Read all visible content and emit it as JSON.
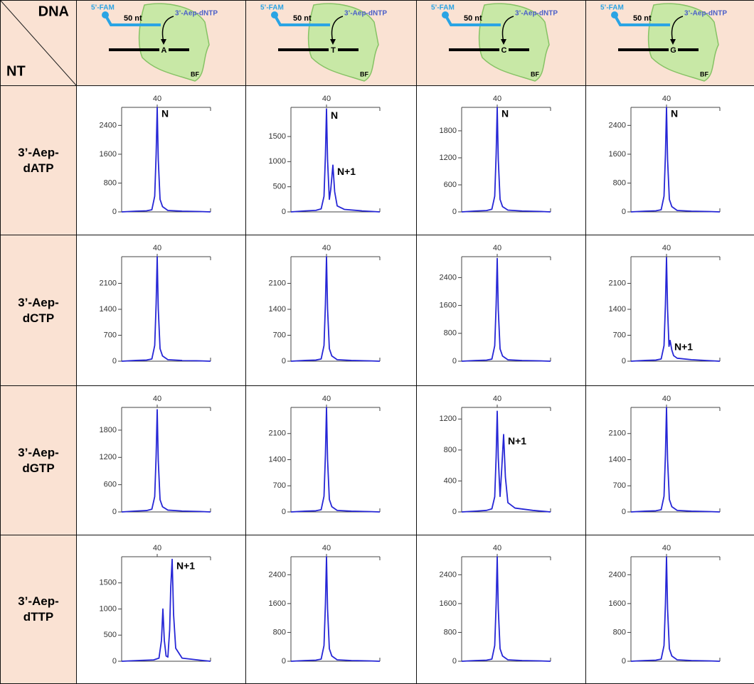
{
  "table": {
    "corner": {
      "top": "DNA",
      "bottom": "NT"
    },
    "columns": [
      {
        "primer": "5’-FAM",
        "length": "50 nt",
        "nucleotide": "3’-Aep-dNTP",
        "base": "A",
        "enzyme": "BF"
      },
      {
        "primer": "5’-FAM",
        "length": "50 nt",
        "nucleotide": "3’-Aep-dNTP",
        "base": "T",
        "enzyme": "BF"
      },
      {
        "primer": "5’-FAM",
        "length": "50 nt",
        "nucleotide": "3’-Aep-dNTP",
        "base": "C",
        "enzyme": "BF"
      },
      {
        "primer": "5’-FAM",
        "length": "50 nt",
        "nucleotide": "3’-Aep-dNTP",
        "base": "G",
        "enzyme": "BF"
      }
    ],
    "rows": [
      "3’-Aep-dATP",
      "3’-Aep-dCTP",
      "3’-Aep-dGTP",
      "3’-Aep-dTTP"
    ]
  },
  "chart_data": [
    {
      "type": "line",
      "color": "#2626d6",
      "xlim": [
        30,
        55
      ],
      "xticks": [
        40
      ],
      "ylim": [
        0,
        2900
      ],
      "yticks": [
        0,
        800,
        1600,
        2400
      ],
      "x": [
        30,
        34,
        37,
        38.5,
        39.3,
        39.7,
        40,
        40.3,
        40.8,
        41.5,
        43,
        47,
        52,
        55
      ],
      "values": [
        0,
        20,
        30,
        60,
        435,
        1595,
        2900,
        1450,
        348,
        145,
        40,
        20,
        10,
        0
      ],
      "annotations": [
        {
          "text": "N",
          "x": 40,
          "y": 2900
        }
      ]
    },
    {
      "type": "line",
      "color": "#2626d6",
      "xlim": [
        30,
        55
      ],
      "xticks": [
        40
      ],
      "ylim": [
        0,
        2080
      ],
      "yticks": [
        0,
        500,
        1000,
        1500
      ],
      "x": [
        30,
        34,
        37,
        38.5,
        39.3,
        39.7,
        40,
        40.3,
        40.8,
        41.2,
        41.8,
        42.3,
        43,
        45,
        50,
        55
      ],
      "values": [
        0,
        20,
        30,
        60,
        310,
        1130,
        2050,
        1030,
        250,
        450,
        930,
        400,
        120,
        50,
        20,
        0
      ],
      "annotations": [
        {
          "text": "N",
          "x": 40,
          "y": 2050
        },
        {
          "text": "N+1",
          "x": 41.8,
          "y": 930
        }
      ]
    },
    {
      "type": "line",
      "color": "#2626d6",
      "xlim": [
        30,
        55
      ],
      "xticks": [
        40
      ],
      "ylim": [
        0,
        2320
      ],
      "yticks": [
        0,
        600,
        1200,
        1800
      ],
      "x": [
        30,
        34,
        37,
        38.5,
        39.3,
        39.7,
        40,
        40.3,
        40.8,
        41.5,
        43,
        47,
        52,
        55
      ],
      "values": [
        0,
        20,
        30,
        60,
        348,
        1276,
        2320,
        1160,
        278,
        116,
        40,
        20,
        10,
        0
      ],
      "annotations": [
        {
          "text": "N",
          "x": 40,
          "y": 2320
        }
      ]
    },
    {
      "type": "line",
      "color": "#2626d6",
      "xlim": [
        30,
        55
      ],
      "xticks": [
        40
      ],
      "ylim": [
        0,
        2900
      ],
      "yticks": [
        0,
        800,
        1600,
        2400
      ],
      "x": [
        30,
        34,
        37,
        38.5,
        39.3,
        39.7,
        40,
        40.3,
        40.8,
        41.5,
        43,
        47,
        52,
        55
      ],
      "values": [
        0,
        20,
        30,
        60,
        435,
        1595,
        2900,
        1450,
        348,
        145,
        40,
        20,
        10,
        0
      ],
      "annotations": [
        {
          "text": "N",
          "x": 40,
          "y": 2900
        }
      ]
    },
    {
      "type": "line",
      "color": "#2626d6",
      "xlim": [
        30,
        55
      ],
      "xticks": [
        40
      ],
      "ylim": [
        0,
        2820
      ],
      "yticks": [
        0,
        700,
        1400,
        2100
      ],
      "x": [
        30,
        34,
        37,
        38.5,
        39.3,
        39.7,
        40,
        40.3,
        40.8,
        41.5,
        43,
        47,
        52,
        55
      ],
      "values": [
        0,
        20,
        30,
        60,
        423,
        1551,
        2820,
        1410,
        338,
        141,
        40,
        20,
        10,
        0
      ],
      "annotations": []
    },
    {
      "type": "line",
      "color": "#2626d6",
      "xlim": [
        30,
        55
      ],
      "xticks": [
        40
      ],
      "ylim": [
        0,
        2820
      ],
      "yticks": [
        0,
        700,
        1400,
        2100
      ],
      "x": [
        30,
        34,
        37,
        38.5,
        39.3,
        39.7,
        40,
        40.3,
        40.8,
        41.5,
        43,
        47,
        52,
        55
      ],
      "values": [
        0,
        20,
        30,
        60,
        423,
        1551,
        2820,
        1410,
        338,
        141,
        40,
        20,
        10,
        0
      ],
      "annotations": []
    },
    {
      "type": "line",
      "color": "#2626d6",
      "xlim": [
        30,
        55
      ],
      "xticks": [
        40
      ],
      "ylim": [
        0,
        3000
      ],
      "yticks": [
        0,
        800,
        1600,
        2400
      ],
      "x": [
        30,
        34,
        37,
        38.5,
        39.3,
        39.7,
        40,
        40.3,
        40.8,
        41.5,
        43,
        47,
        52,
        55
      ],
      "values": [
        0,
        20,
        30,
        60,
        443,
        1623,
        2950,
        1475,
        354,
        148,
        40,
        20,
        10,
        0
      ],
      "annotations": []
    },
    {
      "type": "line",
      "color": "#2626d6",
      "xlim": [
        30,
        55
      ],
      "xticks": [
        40
      ],
      "ylim": [
        0,
        2820
      ],
      "yticks": [
        0,
        700,
        1400,
        2100
      ],
      "x": [
        30,
        34,
        37,
        38.5,
        39.3,
        39.7,
        40,
        40.3,
        40.7,
        41,
        41.5,
        42,
        43,
        47,
        52,
        55
      ],
      "values": [
        0,
        20,
        30,
        60,
        420,
        1540,
        2800,
        1400,
        400,
        560,
        300,
        150,
        80,
        40,
        15,
        0
      ],
      "annotations": [
        {
          "text": "N+1",
          "x": 41,
          "y": 560
        }
      ]
    },
    {
      "type": "line",
      "color": "#2626d6",
      "xlim": [
        30,
        55
      ],
      "xticks": [
        40
      ],
      "ylim": [
        0,
        2300
      ],
      "yticks": [
        0,
        600,
        1200,
        1800
      ],
      "x": [
        30,
        34,
        37,
        38.5,
        39.3,
        39.7,
        40,
        40.3,
        40.8,
        41.5,
        43,
        47,
        52,
        55
      ],
      "values": [
        0,
        20,
        30,
        60,
        338,
        1238,
        2250,
        1125,
        270,
        113,
        40,
        20,
        10,
        0
      ],
      "annotations": []
    },
    {
      "type": "line",
      "color": "#2626d6",
      "xlim": [
        30,
        55
      ],
      "xticks": [
        40
      ],
      "ylim": [
        0,
        2800
      ],
      "yticks": [
        0,
        700,
        1400,
        2100
      ],
      "x": [
        30,
        34,
        37,
        38.5,
        39.3,
        39.7,
        40,
        40.3,
        40.8,
        41.5,
        43,
        47,
        52,
        55
      ],
      "values": [
        0,
        20,
        30,
        60,
        420,
        1540,
        2800,
        1400,
        336,
        140,
        40,
        20,
        10,
        0
      ],
      "annotations": []
    },
    {
      "type": "line",
      "color": "#2626d6",
      "xlim": [
        30,
        55
      ],
      "xticks": [
        40
      ],
      "ylim": [
        0,
        1350
      ],
      "yticks": [
        0,
        400,
        800,
        1200
      ],
      "x": [
        30,
        34,
        37,
        38.5,
        39.3,
        39.7,
        40,
        40.3,
        40.8,
        41.2,
        41.8,
        42.3,
        43,
        45,
        50,
        55
      ],
      "values": [
        0,
        10,
        20,
        40,
        195,
        715,
        1300,
        700,
        200,
        500,
        1000,
        450,
        120,
        50,
        20,
        0
      ],
      "annotations": [
        {
          "text": "N+1",
          "x": 41.8,
          "y": 1000
        }
      ]
    },
    {
      "type": "line",
      "color": "#2626d6",
      "xlim": [
        30,
        55
      ],
      "xticks": [
        40
      ],
      "ylim": [
        0,
        2800
      ],
      "yticks": [
        0,
        700,
        1400,
        2100
      ],
      "x": [
        30,
        34,
        37,
        38.5,
        39.3,
        39.7,
        40,
        40.3,
        40.8,
        41.5,
        43,
        47,
        52,
        55
      ],
      "values": [
        0,
        20,
        30,
        60,
        420,
        1540,
        2800,
        1400,
        336,
        140,
        40,
        20,
        10,
        0
      ],
      "annotations": []
    },
    {
      "type": "line",
      "color": "#2626d6",
      "xlim": [
        30,
        55
      ],
      "xticks": [
        40
      ],
      "ylim": [
        0,
        2000
      ],
      "yticks": [
        0,
        500,
        1000,
        1500
      ],
      "x": [
        30,
        35,
        39,
        40.5,
        41.2,
        41.6,
        42,
        42.5,
        43,
        43.5,
        43.8,
        44.2,
        44.6,
        45.2,
        47,
        52,
        55
      ],
      "values": [
        0,
        15,
        25,
        60,
        400,
        1000,
        400,
        100,
        80,
        600,
        1400,
        1950,
        900,
        250,
        60,
        20,
        0
      ],
      "annotations": [
        {
          "text": "N+1",
          "x": 44.2,
          "y": 1950
        }
      ]
    },
    {
      "type": "line",
      "color": "#2626d6",
      "xlim": [
        30,
        55
      ],
      "xticks": [
        40
      ],
      "ylim": [
        0,
        2900
      ],
      "yticks": [
        0,
        800,
        1600,
        2400
      ],
      "x": [
        30,
        34,
        37,
        38.5,
        39.3,
        39.7,
        40,
        40.3,
        40.8,
        41.5,
        43,
        47,
        52,
        55
      ],
      "values": [
        0,
        20,
        30,
        60,
        435,
        1595,
        2900,
        1450,
        348,
        145,
        40,
        20,
        10,
        0
      ],
      "annotations": []
    },
    {
      "type": "line",
      "color": "#2626d6",
      "xlim": [
        30,
        55
      ],
      "xticks": [
        40
      ],
      "ylim": [
        0,
        2900
      ],
      "yticks": [
        0,
        800,
        1600,
        2400
      ],
      "x": [
        30,
        34,
        37,
        38.5,
        39.3,
        39.7,
        40,
        40.3,
        40.8,
        41.5,
        43,
        47,
        52,
        55
      ],
      "values": [
        0,
        20,
        30,
        60,
        435,
        1595,
        2900,
        1450,
        348,
        145,
        40,
        20,
        10,
        0
      ],
      "annotations": []
    },
    {
      "type": "line",
      "color": "#2626d6",
      "xlim": [
        30,
        55
      ],
      "xticks": [
        40
      ],
      "ylim": [
        0,
        2900
      ],
      "yticks": [
        0,
        800,
        1600,
        2400
      ],
      "x": [
        30,
        34,
        37,
        38.5,
        39.3,
        39.7,
        40,
        40.3,
        40.8,
        41.5,
        43,
        47,
        52,
        55
      ],
      "values": [
        0,
        20,
        30,
        60,
        435,
        1595,
        2900,
        1450,
        348,
        145,
        40,
        20,
        10,
        0
      ],
      "annotations": []
    }
  ]
}
